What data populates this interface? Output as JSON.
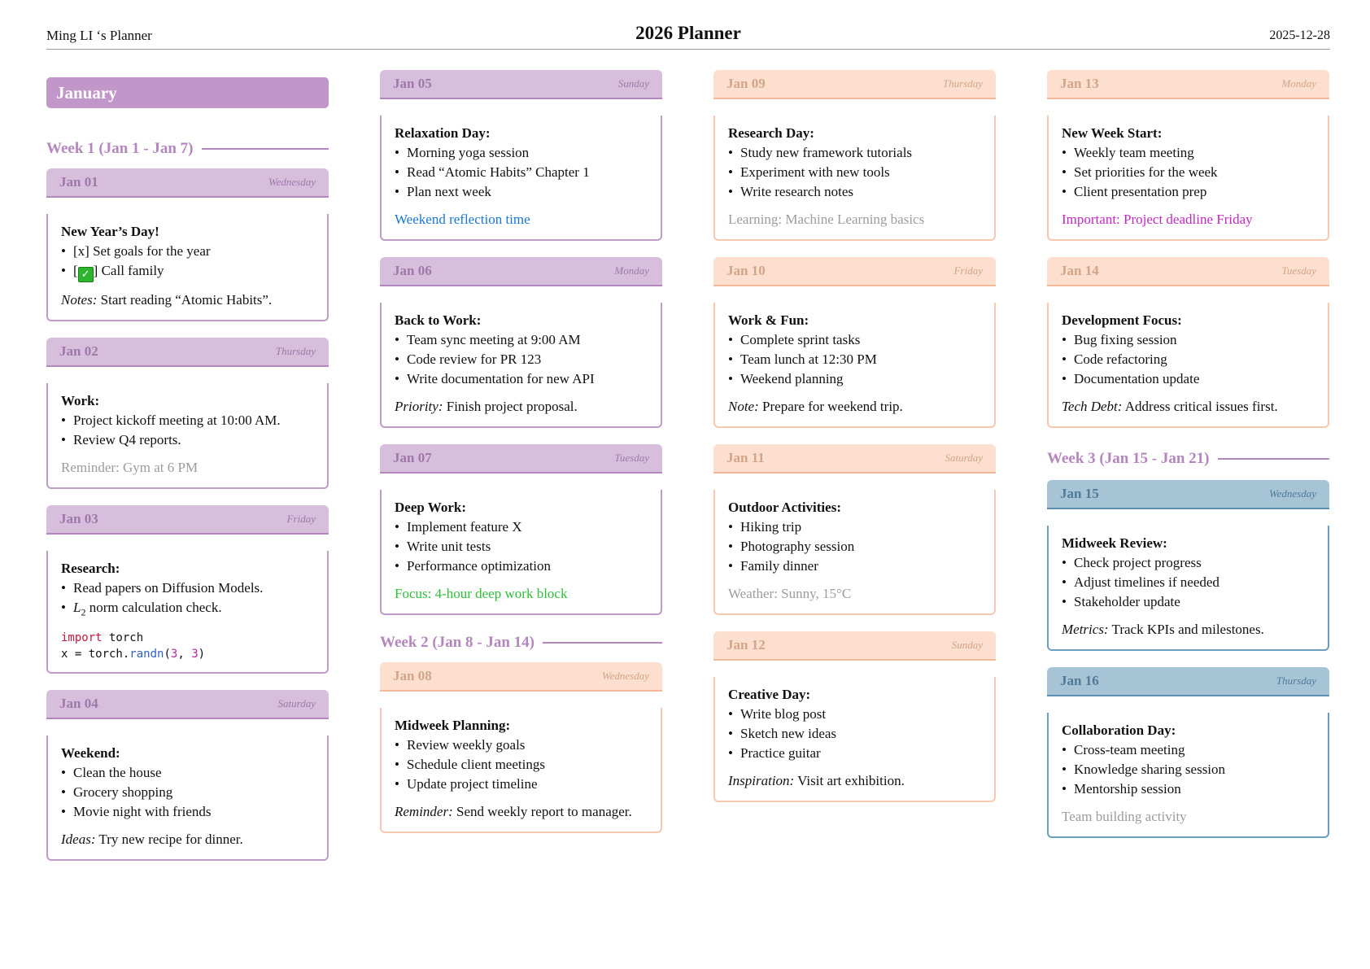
{
  "header": {
    "owner": "Ming LI ‘s Planner",
    "title": "2026 Planner",
    "date": "2025-12-28"
  },
  "month": "January",
  "weeks": {
    "w1": "Week 1 (Jan 1 - Jan 7)",
    "w2": "Week 2 (Jan 8 - Jan 14)",
    "w3": "Week 3 (Jan 15 - Jan 21)"
  },
  "days": {
    "jan01": {
      "date": "Jan 01",
      "weekday": "Wednesday",
      "title": "New Year’s Day!",
      "items": [
        "[x] Set goals for the year",
        "[",
        "] Call family"
      ],
      "note_label": "Notes:",
      "note_text": " Start reading “Atomic Habits”."
    },
    "jan02": {
      "date": "Jan 02",
      "weekday": "Thursday",
      "title": "Work:",
      "items": [
        "Project kickoff meeting at 10:00 AM.",
        "Review Q4 reports."
      ],
      "note_text": "Reminder: Gym at 6 PM"
    },
    "jan03": {
      "date": "Jan 03",
      "weekday": "Friday",
      "title": "Research:",
      "items": [
        "Read papers on Diffusion Models.",
        "L",
        "2",
        " norm calculation check."
      ],
      "code": {
        "kw": "import",
        "l1_rest": " torch",
        "l2_a": "x = torch.",
        "l2_fn": "randn",
        "l2_b": "(",
        "l2_n1": "3",
        "l2_c": ", ",
        "l2_n2": "3",
        "l2_d": ")"
      }
    },
    "jan04": {
      "date": "Jan 04",
      "weekday": "Saturday",
      "title": "Weekend:",
      "items": [
        "Clean the house",
        "Grocery shopping",
        "Movie night with friends"
      ],
      "note_label": "Ideas:",
      "note_text": " Try new recipe for dinner."
    },
    "jan05": {
      "date": "Jan 05",
      "weekday": "Sunday",
      "title": "Relaxation Day:",
      "items": [
        "Morning yoga session",
        "Read “Atomic Habits” Chapter 1",
        "Plan next week"
      ],
      "note_text": "Weekend reflection time"
    },
    "jan06": {
      "date": "Jan 06",
      "weekday": "Monday",
      "title": "Back to Work:",
      "items": [
        "Team sync meeting at 9:00 AM",
        "Code review for PR 123",
        "Write documentation for new API"
      ],
      "note_label": "Priority:",
      "note_text": " Finish project proposal."
    },
    "jan07": {
      "date": "Jan 07",
      "weekday": "Tuesday",
      "title": "Deep Work:",
      "items": [
        "Implement feature X",
        "Write unit tests",
        "Performance optimization"
      ],
      "note_text": "Focus: 4-hour deep work block"
    },
    "jan08": {
      "date": "Jan 08",
      "weekday": "Wednesday",
      "title": "Midweek Planning:",
      "items": [
        "Review weekly goals",
        "Schedule client meetings",
        "Update project timeline"
      ],
      "note_label": "Reminder:",
      "note_text": " Send weekly report to manager."
    },
    "jan09": {
      "date": "Jan 09",
      "weekday": "Thursday",
      "title": "Research Day:",
      "items": [
        "Study new framework tutorials",
        "Experiment with new tools",
        "Write research notes"
      ],
      "note_text": "Learning: Machine Learning basics"
    },
    "jan10": {
      "date": "Jan 10",
      "weekday": "Friday",
      "title": "Work & Fun:",
      "items": [
        "Complete sprint tasks",
        "Team lunch at 12:30 PM",
        "Weekend planning"
      ],
      "note_label": "Note:",
      "note_text": " Prepare for weekend trip."
    },
    "jan11": {
      "date": "Jan 11",
      "weekday": "Saturday",
      "title": "Outdoor Activities:",
      "items": [
        "Hiking trip",
        "Photography session",
        "Family dinner"
      ],
      "note_text": "Weather: Sunny, 15°C"
    },
    "jan12": {
      "date": "Jan 12",
      "weekday": "Sunday",
      "title": "Creative Day:",
      "items": [
        "Write blog post",
        "Sketch new ideas",
        "Practice guitar"
      ],
      "note_label": "Inspiration:",
      "note_text": " Visit art exhibition."
    },
    "jan13": {
      "date": "Jan 13",
      "weekday": "Monday",
      "title": "New Week Start:",
      "items": [
        "Weekly team meeting",
        "Set priorities for the week",
        "Client presentation prep"
      ],
      "note_text": "Important: Project deadline Friday"
    },
    "jan14": {
      "date": "Jan 14",
      "weekday": "Tuesday",
      "title": "Development Focus:",
      "items": [
        "Bug fixing session",
        "Code refactoring",
        "Documentation update"
      ],
      "note_label": "Tech Debt:",
      "note_text": " Address critical issues first."
    },
    "jan15": {
      "date": "Jan 15",
      "weekday": "Wednesday",
      "title": "Midweek Review:",
      "items": [
        "Check project progress",
        "Adjust timelines if needed",
        "Stakeholder update"
      ],
      "note_label": "Metrics:",
      "note_text": " Track KPIs and milestones."
    },
    "jan16": {
      "date": "Jan 16",
      "weekday": "Thursday",
      "title": "Collaboration Day:",
      "items": [
        "Cross-team meeting",
        "Knowledge sharing session",
        "Mentorship session"
      ],
      "note_text": "Team building activity"
    }
  },
  "colors": {
    "purple": "#d8bedd",
    "peach": "#fcdfcf",
    "blue": "#a7c4d7",
    "month": "#c196c8"
  }
}
